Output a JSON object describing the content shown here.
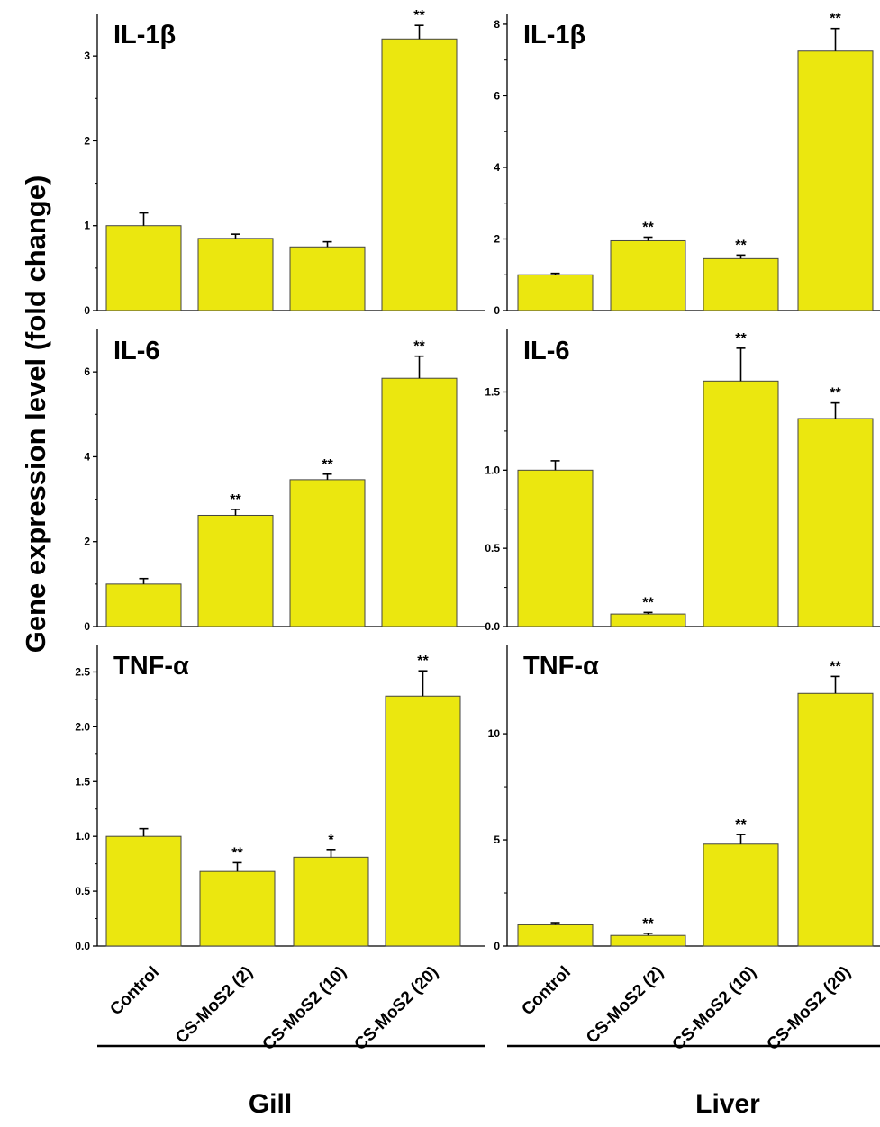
{
  "figure": {
    "ylabel": "Gene expression level (fold change)",
    "bar_color": "#ebe70f",
    "categories": [
      "Control",
      "CS-MoS2 (2)",
      "CS-MoS2 (10)",
      "CS-MoS2 (20)"
    ],
    "groups": [
      "Gill",
      "Liver"
    ]
  },
  "chart_data": [
    {
      "type": "bar",
      "title": "IL-1β",
      "group": "Gill",
      "categories": [
        "Control",
        "CS-MoS2 (2)",
        "CS-MoS2 (10)",
        "CS-MoS2 (20)"
      ],
      "values": [
        1.0,
        0.85,
        0.75,
        3.2
      ],
      "errors": [
        0.15,
        0.05,
        0.06,
        0.16
      ],
      "significance": [
        "",
        "",
        "",
        "**"
      ],
      "ylim": [
        0,
        3.5
      ],
      "yticks": [
        0,
        1,
        2,
        3
      ],
      "tick_labels": [
        "0",
        "1",
        "2",
        "3"
      ]
    },
    {
      "type": "bar",
      "title": "IL-1β",
      "group": "Liver",
      "categories": [
        "Control",
        "CS-MoS2 (2)",
        "CS-MoS2 (10)",
        "CS-MoS2 (20)"
      ],
      "values": [
        1.0,
        1.95,
        1.45,
        7.25
      ],
      "errors": [
        0.04,
        0.1,
        0.1,
        0.63
      ],
      "significance": [
        "",
        "**",
        "**",
        "**"
      ],
      "ylim": [
        0,
        8.3
      ],
      "yticks": [
        0,
        2,
        4,
        6,
        8
      ],
      "tick_labels": [
        "0",
        "2",
        "4",
        "6",
        "8"
      ]
    },
    {
      "type": "bar",
      "title": "IL-6",
      "group": "Gill",
      "categories": [
        "Control",
        "CS-MoS2 (2)",
        "CS-MoS2 (10)",
        "CS-MoS2 (20)"
      ],
      "values": [
        1.0,
        2.62,
        3.46,
        5.85
      ],
      "errors": [
        0.13,
        0.14,
        0.13,
        0.52
      ],
      "significance": [
        "",
        "**",
        "**",
        "**"
      ],
      "ylim": [
        0,
        7.0
      ],
      "yticks": [
        0,
        2,
        4,
        6
      ],
      "tick_labels": [
        "0",
        "2",
        "4",
        "6"
      ]
    },
    {
      "type": "bar",
      "title": "IL-6",
      "group": "Liver",
      "categories": [
        "Control",
        "CS-MoS2 (2)",
        "CS-MoS2 (10)",
        "CS-MoS2 (20)"
      ],
      "values": [
        1.0,
        0.08,
        1.57,
        1.33
      ],
      "errors": [
        0.06,
        0.01,
        0.21,
        0.1
      ],
      "significance": [
        "",
        "**",
        "**",
        "**"
      ],
      "ylim": [
        0,
        1.9
      ],
      "yticks": [
        0,
        0.5,
        1.0,
        1.5
      ],
      "tick_labels": [
        "0.0",
        "0.5",
        "1.0",
        "1.5"
      ]
    },
    {
      "type": "bar",
      "title": "TNF-α",
      "group": "Gill",
      "categories": [
        "Control",
        "CS-MoS2 (2)",
        "CS-MoS2 (10)",
        "CS-MoS2 (20)"
      ],
      "values": [
        1.0,
        0.68,
        0.81,
        2.28
      ],
      "errors": [
        0.07,
        0.08,
        0.07,
        0.23
      ],
      "significance": [
        "",
        "**",
        "*",
        "**"
      ],
      "ylim": [
        0,
        2.75
      ],
      "yticks": [
        0,
        0.5,
        1.0,
        1.5,
        2.0,
        2.5
      ],
      "tick_labels": [
        "0.0",
        "0.5",
        "1.0",
        "1.5",
        "2.0",
        "2.5"
      ]
    },
    {
      "type": "bar",
      "title": "TNF-α",
      "group": "Liver",
      "categories": [
        "Control",
        "CS-MoS2 (2)",
        "CS-MoS2 (10)",
        "CS-MoS2 (20)"
      ],
      "values": [
        1.0,
        0.5,
        4.8,
        11.9
      ],
      "errors": [
        0.1,
        0.1,
        0.45,
        0.8
      ],
      "significance": [
        "",
        "**",
        "**",
        "**"
      ],
      "ylim": [
        0,
        14.2
      ],
      "yticks": [
        0,
        5,
        10
      ],
      "tick_labels": [
        "0",
        "5",
        "10"
      ]
    }
  ]
}
